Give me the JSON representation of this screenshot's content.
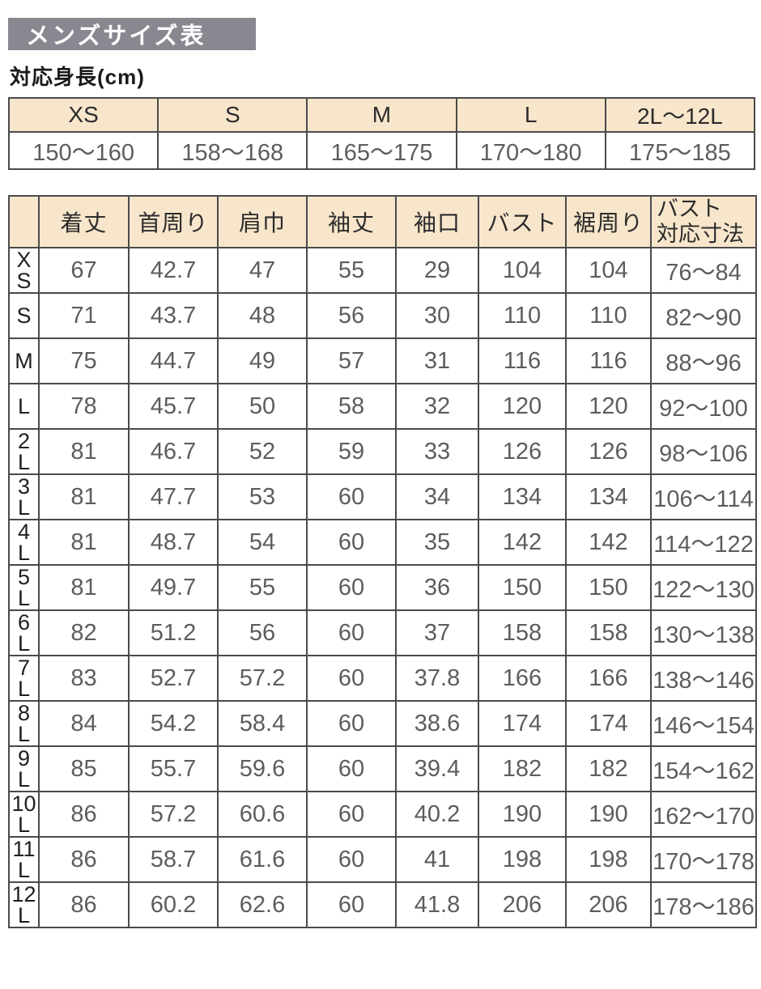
{
  "page_title": "メンズサイズ表",
  "height_caption": "対応身長(cm)",
  "colors": {
    "title_bar_bg": "#8a8790",
    "title_text": "#ffffff",
    "table_header_bg": "#f7e6cb",
    "table_border": "#4a4a4a",
    "value_text": "#5d5d5d",
    "label_text": "#1f1f1f"
  },
  "chart_data": [
    {
      "type": "table",
      "title": "対応身長(cm)",
      "columns": [
        "XS",
        "S",
        "M",
        "L",
        "2L～12L"
      ],
      "rows": [
        [
          "150～160",
          "158～168",
          "165～175",
          "170～180",
          "175～185"
        ]
      ]
    },
    {
      "type": "table",
      "title": "メンズサイズ表",
      "columns": [
        "",
        "着丈",
        "首周り",
        "肩巾",
        "袖丈",
        "袖口",
        "バスト",
        "裾周り",
        "バスト\n対応寸法"
      ],
      "rows": [
        [
          "XS",
          67,
          42.7,
          47,
          55,
          29,
          104,
          104,
          "76～84"
        ],
        [
          "S",
          71,
          43.7,
          48,
          56,
          30,
          110,
          110,
          "82～90"
        ],
        [
          "M",
          75,
          44.7,
          49,
          57,
          31,
          116,
          116,
          "88～96"
        ],
        [
          "L",
          78,
          45.7,
          50,
          58,
          32,
          120,
          120,
          "92～100"
        ],
        [
          "2L",
          81,
          46.7,
          52,
          59,
          33,
          126,
          126,
          "98～106"
        ],
        [
          "3L",
          81,
          47.7,
          53,
          60,
          34,
          134,
          134,
          "106～114"
        ],
        [
          "4L",
          81,
          48.7,
          54,
          60,
          35,
          142,
          142,
          "114～122"
        ],
        [
          "5L",
          81,
          49.7,
          55,
          60,
          36,
          150,
          150,
          "122～130"
        ],
        [
          "6L",
          82,
          51.2,
          56,
          60,
          37,
          158,
          158,
          "130～138"
        ],
        [
          "7L",
          83,
          52.7,
          57.2,
          60,
          37.8,
          166,
          166,
          "138～146"
        ],
        [
          "8L",
          84,
          54.2,
          58.4,
          60,
          38.6,
          174,
          174,
          "146～154"
        ],
        [
          "9L",
          85,
          55.7,
          59.6,
          60,
          39.4,
          182,
          182,
          "154～162"
        ],
        [
          "10L",
          86,
          57.2,
          60.6,
          60,
          40.2,
          190,
          190,
          "162～170"
        ],
        [
          "11L",
          86,
          58.7,
          61.6,
          60,
          41,
          198,
          198,
          "170～178"
        ],
        [
          "12L",
          86,
          60.2,
          62.6,
          60,
          41.8,
          206,
          206,
          "178～186"
        ]
      ]
    }
  ]
}
